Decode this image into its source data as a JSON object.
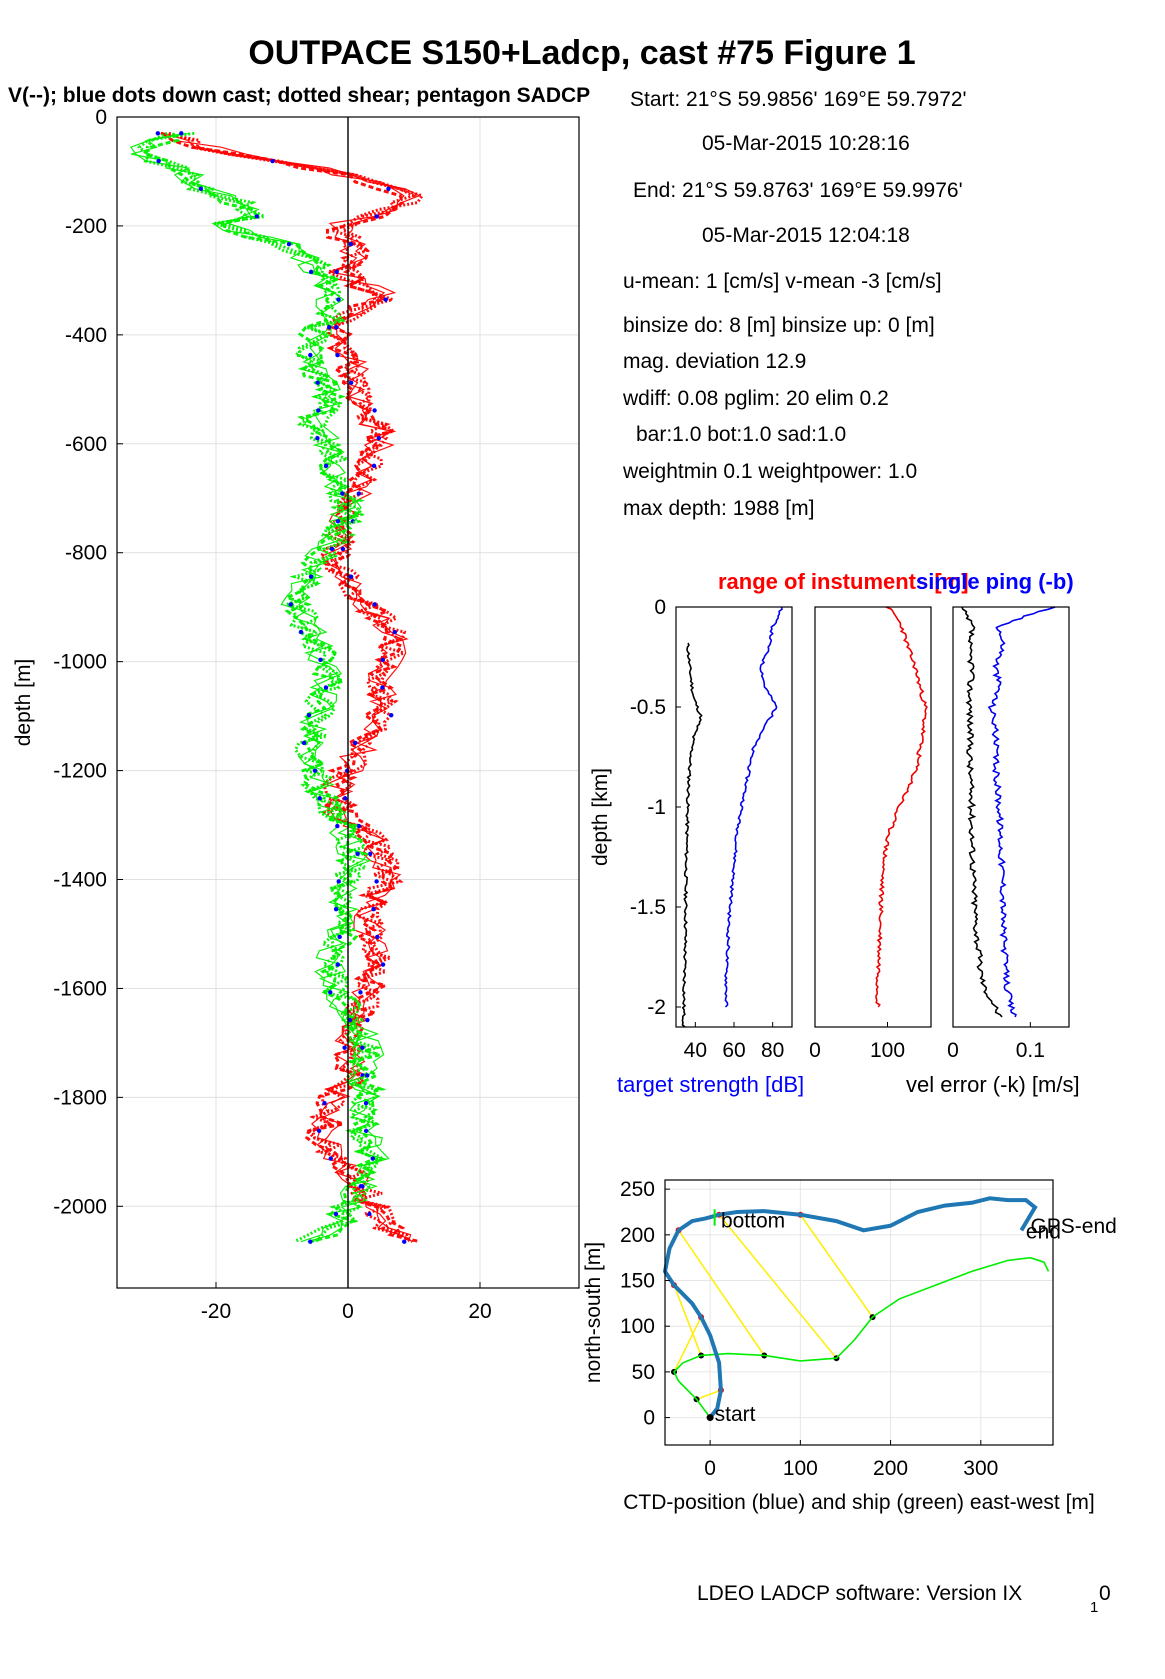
{
  "figure": {
    "title": "OUTPACE S150+Ladcp, cast #75  Figure 1",
    "subtitle": "V(--); blue dots down cast; dotted shear; pentagon SADCP",
    "footer_main": "LDEO LADCP software: Version IX",
    "footer_sub": "1",
    "footer_tail": "0"
  },
  "info": {
    "start_line": "Start:  21°S 59.9856'     169°E 59.7972'",
    "start_time": "05-Mar-2015 10:28:16",
    "end_line": "End:  21°S 59.8763'     169°E 59.9976'",
    "end_time": "05-Mar-2015 12:04:18",
    "umean": "u-mean:   1 [cm/s]    v-mean  -3 [cm/s]",
    "binsize": "binsize do: 8 [m]  binsize up:  0 [m]",
    "magdev": "mag. deviation 12.9",
    "wdiff": "wdiff: 0.08  pglim: 20  elim 0.2",
    "bar": "bar:1.0 bot:1.0 sad:1.0",
    "weight": "weightmin 0.1  weightpower: 1.0",
    "maxdepth": "max depth: 1988 [m]"
  },
  "chart_data": [
    {
      "type": "line",
      "name": "velocity-profile",
      "ylabel": "depth [m]",
      "xlim": [
        -35,
        35
      ],
      "ylim": [
        -2150,
        0
      ],
      "xticks": [
        -20,
        0,
        20
      ],
      "yticks": [
        0,
        -200,
        -400,
        -600,
        -800,
        -1000,
        -1200,
        -1400,
        -1600,
        -1800,
        -2000
      ],
      "grid": true,
      "series": [
        {
          "color": "#ff0000",
          "depth": [
            -30,
            -60,
            -100,
            -130,
            -150,
            -180,
            -200,
            -230,
            -260,
            -290,
            -330,
            -360,
            -400,
            -440,
            -480,
            -520,
            -560,
            -600,
            -640,
            -680,
            -720,
            -760,
            -800,
            -840,
            -880,
            -920,
            -960,
            -1000,
            -1040,
            -1080,
            -1120,
            -1160,
            -1200,
            -1240,
            -1280,
            -1320,
            -1360,
            -1400,
            -1440,
            -1480,
            -1520,
            -1560,
            -1600,
            -1640,
            -1680,
            -1720,
            -1760,
            -1800,
            -1840,
            -1880,
            -1920,
            -1960,
            -2000,
            -2040,
            -2065
          ],
          "values": [
            -28,
            -20,
            -2,
            6,
            10,
            4,
            -2,
            0,
            1,
            -1,
            6,
            0,
            -2,
            0,
            1,
            2,
            4,
            5,
            3,
            2,
            0,
            -1,
            -2,
            -1,
            2,
            5,
            7,
            6,
            5,
            6,
            4,
            2,
            0,
            -2,
            -1,
            3,
            5,
            6,
            4,
            3,
            4,
            5,
            3,
            2,
            1,
            0,
            1,
            -2,
            -3,
            -4,
            -1,
            2,
            4,
            6,
            9
          ]
        },
        {
          "color": "#00ee00",
          "depth": [
            -30,
            -60,
            -100,
            -130,
            -150,
            -180,
            -200,
            -230,
            -260,
            -290,
            -330,
            -360,
            -400,
            -440,
            -480,
            -520,
            -560,
            -600,
            -640,
            -680,
            -720,
            -760,
            -800,
            -840,
            -880,
            -920,
            -960,
            -1000,
            -1040,
            -1080,
            -1120,
            -1160,
            -1200,
            -1240,
            -1280,
            -1320,
            -1360,
            -1400,
            -1440,
            -1480,
            -1520,
            -1560,
            -1600,
            -1640,
            -1680,
            -1720,
            -1760,
            -1800,
            -1840,
            -1880,
            -1920,
            -1960,
            -2000,
            -2040,
            -2065
          ],
          "values": [
            -25,
            -32,
            -25,
            -22,
            -18,
            -14,
            -20,
            -10,
            -6,
            -4,
            -3,
            -2,
            -5,
            -6,
            -4,
            -3,
            -5,
            -3,
            -2,
            -1,
            0,
            -1,
            -4,
            -6,
            -8,
            -7,
            -5,
            -4,
            -3,
            -4,
            -5,
            -6,
            -5,
            -4,
            -2,
            0,
            1,
            0,
            -1,
            0,
            -2,
            -3,
            -2,
            0,
            2,
            3,
            2,
            3,
            2,
            3,
            4,
            2,
            0,
            -2,
            -6
          ]
        }
      ]
    },
    {
      "type": "line",
      "name": "target-strength",
      "xticks": [
        40,
        60,
        80
      ],
      "xlim": [
        30,
        90
      ],
      "ylim": [
        -2.1,
        0
      ],
      "yticks": [
        0,
        -0.5,
        -1,
        -1.5,
        -2
      ],
      "ylabel": "depth [km]",
      "xlabel": "target strength [dB]",
      "series": [
        {
          "color": "#000000",
          "depth": [
            -0.18,
            -0.3,
            -0.45,
            -0.55,
            -0.65,
            -0.8,
            -1.0,
            -1.2,
            -1.4,
            -1.6,
            -1.8,
            -2.0,
            -2.1
          ],
          "values": [
            36,
            37,
            39,
            43,
            39,
            37,
            36,
            35.5,
            35,
            35,
            34.5,
            34,
            34
          ]
        },
        {
          "color": "#0000ee",
          "depth": [
            0,
            -0.1,
            -0.2,
            -0.3,
            -0.4,
            -0.5,
            -0.6,
            -0.7,
            -0.8,
            -0.9,
            -1.0,
            -1.1,
            -1.2,
            -1.3,
            -1.4,
            -1.5,
            -1.6,
            -1.7,
            -1.8,
            -1.9,
            -2.0
          ],
          "values": [
            85,
            80,
            78,
            74,
            76,
            82,
            76,
            70,
            68,
            66,
            64,
            62,
            61,
            60,
            59,
            58,
            57,
            57,
            56,
            56,
            56
          ]
        }
      ]
    },
    {
      "type": "line",
      "name": "range-of-instruments",
      "title": "range of instuments [m]",
      "xlim": [
        0,
        160
      ],
      "ylim": [
        -2.1,
        0
      ],
      "xticks": [
        0,
        100
      ],
      "series": [
        {
          "color": "#ee0000",
          "depth": [
            0,
            -0.05,
            -0.1,
            -0.2,
            -0.3,
            -0.4,
            -0.5,
            -0.6,
            -0.7,
            -0.8,
            -0.9,
            -1.0,
            -1.1,
            -1.2,
            -1.3,
            -1.4,
            -1.5,
            -1.6,
            -1.7,
            -1.8,
            -1.9,
            -2.0
          ],
          "values": [
            100,
            112,
            120,
            128,
            138,
            145,
            152,
            150,
            145,
            140,
            130,
            115,
            105,
            98,
            94,
            92,
            91,
            90,
            89,
            88,
            87,
            87
          ]
        }
      ]
    },
    {
      "type": "line",
      "name": "single-ping-velocity-error",
      "title": "single ping (-b)",
      "xlim": [
        0,
        0.15
      ],
      "ylim": [
        -2.1,
        0
      ],
      "xticks": [
        0,
        0.1
      ],
      "xlabel": "vel error (-k) [m/s]",
      "series": [
        {
          "color": "#000000",
          "depth": [
            0,
            -0.1,
            -0.2,
            -0.3,
            -0.4,
            -0.6,
            -0.8,
            -1.0,
            -1.2,
            -1.4,
            -1.6,
            -1.8,
            -1.9,
            -2.0,
            -2.05
          ],
          "values": [
            0.01,
            0.025,
            0.02,
            0.025,
            0.022,
            0.022,
            0.022,
            0.024,
            0.025,
            0.027,
            0.03,
            0.035,
            0.04,
            0.055,
            0.06
          ]
        },
        {
          "color": "#0000ee",
          "depth": [
            0,
            -0.05,
            -0.1,
            -0.2,
            -0.3,
            -0.4,
            -0.5,
            -0.6,
            -0.8,
            -1.0,
            -1.2,
            -1.4,
            -1.6,
            -1.8,
            -1.9,
            -2.0,
            -2.05
          ],
          "values": [
            0.13,
            0.09,
            0.06,
            0.065,
            0.055,
            0.06,
            0.05,
            0.055,
            0.055,
            0.06,
            0.062,
            0.065,
            0.065,
            0.068,
            0.07,
            0.075,
            0.08
          ]
        }
      ]
    },
    {
      "type": "line",
      "name": "position-track",
      "xlabel": "CTD-position (blue) and ship (green) east-west [m]",
      "ylabel": "north-south [m]",
      "xlim": [
        -50,
        380
      ],
      "ylim": [
        -30,
        260
      ],
      "xticks": [
        0,
        100,
        200,
        300
      ],
      "yticks": [
        0,
        50,
        100,
        150,
        200,
        250
      ],
      "labels": {
        "start": "start",
        "bottom": "bottom",
        "end": "end",
        "gps_end": "GPS-end"
      },
      "ctd": {
        "color": "#1f77b4",
        "x": [
          0,
          8,
          12,
          10,
          0,
          -10,
          -20,
          -30,
          -40,
          -50,
          -45,
          -35,
          -20,
          -5,
          10,
          30,
          60,
          100,
          140,
          170,
          200,
          230,
          260,
          290,
          310,
          330,
          350,
          360,
          345
        ],
        "y": [
          0,
          10,
          30,
          60,
          90,
          110,
          125,
          135,
          145,
          160,
          185,
          205,
          215,
          218,
          222,
          225,
          226,
          222,
          215,
          205,
          210,
          225,
          232,
          235,
          240,
          238,
          238,
          230,
          205
        ]
      },
      "ship": {
        "color": "#00ee00",
        "x": [
          0,
          -15,
          -35,
          -40,
          -30,
          -10,
          20,
          60,
          100,
          140,
          160,
          180,
          210,
          250,
          290,
          330,
          355,
          370,
          375
        ],
        "y": [
          0,
          20,
          40,
          50,
          60,
          68,
          70,
          68,
          62,
          65,
          85,
          110,
          130,
          145,
          160,
          172,
          175,
          170,
          160
        ]
      }
    }
  ]
}
